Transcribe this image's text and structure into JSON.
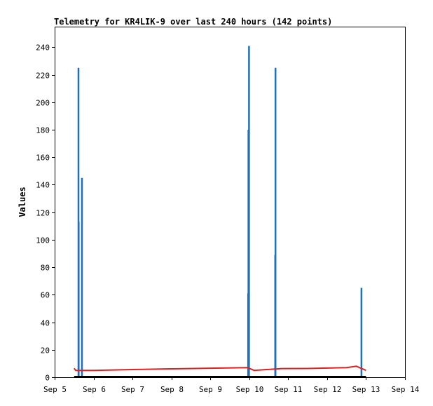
{
  "chart_data": {
    "type": "line",
    "title": "Telemetry for KR4LIK-9 over last 240 hours (142 points)",
    "xlabel": "",
    "ylabel": "Values",
    "ylim": [
      0,
      255
    ],
    "yticks": [
      0,
      20,
      40,
      60,
      80,
      100,
      120,
      140,
      160,
      180,
      200,
      220,
      240
    ],
    "xlim": [
      "Sep 5",
      "Sep 14"
    ],
    "xticks": [
      "Sep 5",
      "Sep 6",
      "Sep 7",
      "Sep 8",
      "Sep 9",
      "Sep 10",
      "Sep 11",
      "Sep 12",
      "Sep 13",
      "Sep 14"
    ],
    "grid": false,
    "legend": "none",
    "series": [
      {
        "color": "#1f6fbf",
        "style": "impulse",
        "points": [
          [
            "Sep 5 14:40",
            225
          ],
          [
            "Sep 5 14:50",
            113
          ],
          [
            "Sep 5 16:50",
            145
          ],
          [
            "Sep 9 23:20",
            61
          ],
          [
            "Sep 9 23:30",
            180
          ],
          [
            "Sep 9 23:50",
            241
          ],
          [
            "Sep 10 16:00",
            89
          ],
          [
            "Sep 10 16:10",
            225
          ],
          [
            "Sep 12 21:10",
            65
          ]
        ]
      },
      {
        "color": "#e02020",
        "style": "line",
        "points": [
          [
            "Sep 5 12:00",
            6.5
          ],
          [
            "Sep 5 13:00",
            5
          ],
          [
            "Sep 6 00:00",
            5
          ],
          [
            "Sep 7 00:00",
            5.6
          ],
          [
            "Sep 8 00:00",
            6.1
          ],
          [
            "Sep 9 00:00",
            6.6
          ],
          [
            "Sep 9 23:00",
            7
          ],
          [
            "Sep 10 03:00",
            5
          ],
          [
            "Sep 10 20:00",
            6.3
          ],
          [
            "Sep 11 12:00",
            6.4
          ],
          [
            "Sep 12 12:00",
            7
          ],
          [
            "Sep 12 18:00",
            8
          ],
          [
            "Sep 13 00:00",
            5
          ]
        ]
      },
      {
        "color": "#000000",
        "style": "line",
        "points": [
          [
            "Sep 5 12:00",
            0.5
          ],
          [
            "Sep 13 00:00",
            0.5
          ]
        ]
      }
    ]
  }
}
